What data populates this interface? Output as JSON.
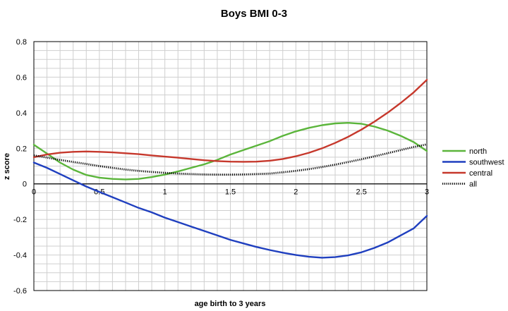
{
  "chart_data": {
    "type": "line",
    "title": "Boys BMI 0-3",
    "xlabel": "age birth to 3 years",
    "ylabel": "z score",
    "xlim": [
      0,
      3
    ],
    "ylim": [
      -0.6,
      0.8
    ],
    "xticks": [
      0,
      0.5,
      1,
      1.5,
      2,
      2.5,
      3
    ],
    "xtick_labels": [
      "0",
      "0.5",
      "1",
      "1.5",
      "2",
      "2.5",
      "3"
    ],
    "yticks": [
      -0.6,
      -0.4,
      -0.2,
      0,
      0.2,
      0.4,
      0.6,
      0.8
    ],
    "ytick_labels": [
      "-0.6",
      "-0.4",
      "-0.2",
      "0",
      "0.2",
      "0.4",
      "0.6",
      "0.8"
    ],
    "x_minor_step": 0.1,
    "y_minor_step": 0.05,
    "grid": true,
    "legend_position": "right",
    "series": [
      {
        "name": "north",
        "color": "#5bb53b",
        "style": "solid",
        "points": [
          [
            0,
            0.22
          ],
          [
            0.1,
            0.17
          ],
          [
            0.2,
            0.12
          ],
          [
            0.3,
            0.08
          ],
          [
            0.4,
            0.05
          ],
          [
            0.5,
            0.035
          ],
          [
            0.6,
            0.028
          ],
          [
            0.7,
            0.025
          ],
          [
            0.8,
            0.028
          ],
          [
            0.9,
            0.038
          ],
          [
            1.0,
            0.052
          ],
          [
            1.1,
            0.07
          ],
          [
            1.2,
            0.09
          ],
          [
            1.3,
            0.11
          ],
          [
            1.4,
            0.135
          ],
          [
            1.5,
            0.165
          ],
          [
            1.6,
            0.19
          ],
          [
            1.7,
            0.215
          ],
          [
            1.8,
            0.24
          ],
          [
            1.9,
            0.27
          ],
          [
            2.0,
            0.295
          ],
          [
            2.1,
            0.315
          ],
          [
            2.2,
            0.33
          ],
          [
            2.3,
            0.34
          ],
          [
            2.4,
            0.343
          ],
          [
            2.5,
            0.338
          ],
          [
            2.6,
            0.322
          ],
          [
            2.7,
            0.3
          ],
          [
            2.8,
            0.27
          ],
          [
            2.9,
            0.235
          ],
          [
            3.0,
            0.185
          ]
        ]
      },
      {
        "name": "southwest",
        "color": "#1f3fbf",
        "style": "solid",
        "points": [
          [
            0,
            0.12
          ],
          [
            0.1,
            0.09
          ],
          [
            0.2,
            0.055
          ],
          [
            0.3,
            0.02
          ],
          [
            0.4,
            -0.015
          ],
          [
            0.5,
            -0.045
          ],
          [
            0.6,
            -0.075
          ],
          [
            0.7,
            -0.105
          ],
          [
            0.8,
            -0.135
          ],
          [
            0.9,
            -0.16
          ],
          [
            1.0,
            -0.19
          ],
          [
            1.1,
            -0.215
          ],
          [
            1.2,
            -0.24
          ],
          [
            1.3,
            -0.265
          ],
          [
            1.4,
            -0.29
          ],
          [
            1.5,
            -0.315
          ],
          [
            1.6,
            -0.335
          ],
          [
            1.7,
            -0.355
          ],
          [
            1.8,
            -0.372
          ],
          [
            1.9,
            -0.387
          ],
          [
            2.0,
            -0.4
          ],
          [
            2.1,
            -0.41
          ],
          [
            2.2,
            -0.415
          ],
          [
            2.3,
            -0.412
          ],
          [
            2.4,
            -0.402
          ],
          [
            2.5,
            -0.385
          ],
          [
            2.6,
            -0.36
          ],
          [
            2.7,
            -0.33
          ],
          [
            2.8,
            -0.29
          ],
          [
            2.9,
            -0.25
          ],
          [
            3.0,
            -0.18
          ]
        ]
      },
      {
        "name": "central",
        "color": "#c6382c",
        "style": "solid",
        "points": [
          [
            0,
            0.15
          ],
          [
            0.1,
            0.165
          ],
          [
            0.2,
            0.175
          ],
          [
            0.3,
            0.18
          ],
          [
            0.4,
            0.182
          ],
          [
            0.5,
            0.18
          ],
          [
            0.6,
            0.177
          ],
          [
            0.7,
            0.172
          ],
          [
            0.8,
            0.167
          ],
          [
            0.9,
            0.16
          ],
          [
            1.0,
            0.153
          ],
          [
            1.1,
            0.147
          ],
          [
            1.2,
            0.14
          ],
          [
            1.3,
            0.133
          ],
          [
            1.4,
            0.128
          ],
          [
            1.5,
            0.125
          ],
          [
            1.6,
            0.124
          ],
          [
            1.7,
            0.125
          ],
          [
            1.8,
            0.13
          ],
          [
            1.9,
            0.14
          ],
          [
            2.0,
            0.155
          ],
          [
            2.1,
            0.175
          ],
          [
            2.2,
            0.2
          ],
          [
            2.3,
            0.23
          ],
          [
            2.4,
            0.265
          ],
          [
            2.5,
            0.305
          ],
          [
            2.6,
            0.35
          ],
          [
            2.7,
            0.4
          ],
          [
            2.8,
            0.455
          ],
          [
            2.9,
            0.515
          ],
          [
            3.0,
            0.585
          ]
        ]
      },
      {
        "name": "all",
        "color": "#000000",
        "style": "dotted-thick",
        "points": [
          [
            0,
            0.16
          ],
          [
            0.1,
            0.148
          ],
          [
            0.2,
            0.135
          ],
          [
            0.3,
            0.123
          ],
          [
            0.4,
            0.112
          ],
          [
            0.5,
            0.1
          ],
          [
            0.6,
            0.09
          ],
          [
            0.7,
            0.08
          ],
          [
            0.8,
            0.073
          ],
          [
            0.9,
            0.067
          ],
          [
            1.0,
            0.062
          ],
          [
            1.1,
            0.058
          ],
          [
            1.2,
            0.055
          ],
          [
            1.3,
            0.053
          ],
          [
            1.4,
            0.052
          ],
          [
            1.5,
            0.052
          ],
          [
            1.6,
            0.053
          ],
          [
            1.7,
            0.055
          ],
          [
            1.8,
            0.058
          ],
          [
            1.9,
            0.065
          ],
          [
            2.0,
            0.073
          ],
          [
            2.1,
            0.083
          ],
          [
            2.2,
            0.095
          ],
          [
            2.3,
            0.108
          ],
          [
            2.4,
            0.123
          ],
          [
            2.5,
            0.138
          ],
          [
            2.6,
            0.155
          ],
          [
            2.7,
            0.172
          ],
          [
            2.8,
            0.19
          ],
          [
            2.9,
            0.207
          ],
          [
            3.0,
            0.222
          ]
        ]
      }
    ]
  }
}
